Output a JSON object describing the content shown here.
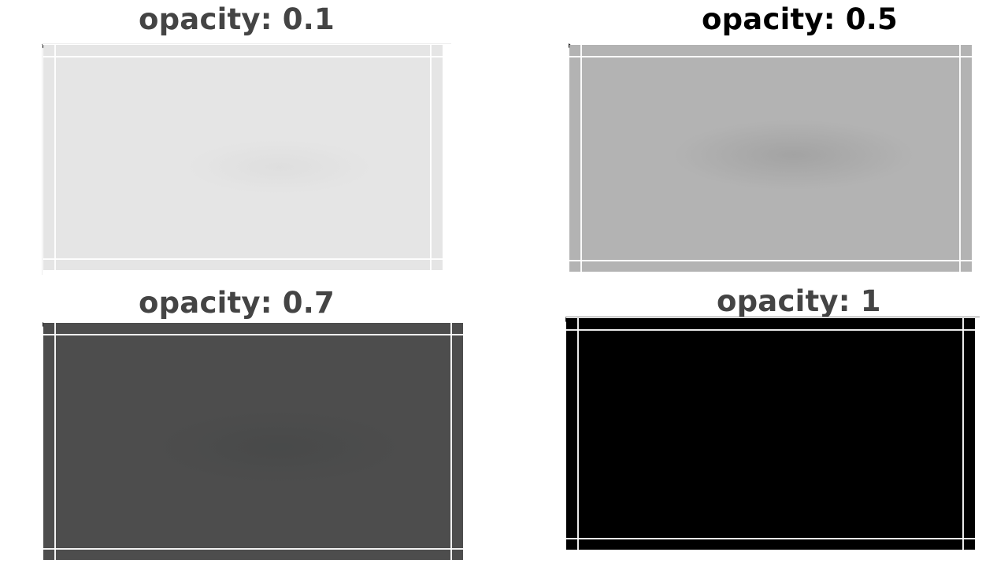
{
  "panels": [
    {
      "id": "opacity-0-1",
      "label": "opacity: 0.1",
      "opacity": 0.1,
      "fill_color": "#e5e5e5",
      "label_color": "#444444"
    },
    {
      "id": "opacity-0-5",
      "label": "opacity: 0.5",
      "opacity": 0.5,
      "fill_color": "#b3b3b3",
      "label_color": "#000000"
    },
    {
      "id": "opacity-0-7",
      "label": "opacity: 0.7",
      "opacity": 0.7,
      "fill_color": "#4d4d4d",
      "label_color": "#444444"
    },
    {
      "id": "opacity-1",
      "label": "opacity: 1",
      "opacity": 1,
      "fill_color": "#000000",
      "label_color": "#444444"
    }
  ]
}
